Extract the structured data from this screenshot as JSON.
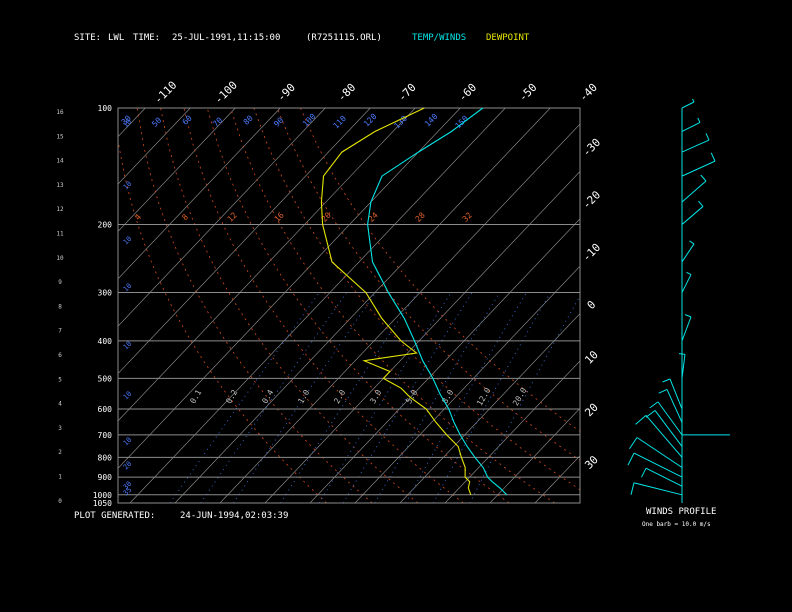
{
  "header": {
    "site_label": "SITE:",
    "site_value": "LWL",
    "time_label": "TIME:",
    "time_value": "25-JUL-1991,11:15:00",
    "file_name": "(R7251115.ORL)",
    "legend_temp": "TEMP/WINDS",
    "legend_dew": "DEWPOINT"
  },
  "footer": {
    "generated_label": "PLOT GENERATED:",
    "generated_value": "24-JUN-1994,02:03:39"
  },
  "wind_panel": {
    "title": "WINDS PROFILE",
    "note": "One barb = 10.0 m/s"
  },
  "colors": {
    "temp": "#00e5e5",
    "dewpoint": "#e5e500",
    "grid": "#8c8c8c",
    "skew": "#9a9a9a",
    "adiabat": "#d24a1e",
    "mixing": "#3a6ad8",
    "labels_blue": "#4a7aff",
    "labels_orange": "#e0602a"
  },
  "chart_data": {
    "type": "line",
    "title": "",
    "pressure_levels": [
      100,
      200,
      300,
      400,
      500,
      600,
      700,
      800,
      900,
      1000,
      1050
    ],
    "height_ticks": [
      "16",
      "15",
      "14",
      "13",
      "12",
      "11",
      "10",
      "9",
      "8",
      "7",
      "6",
      "5",
      "4",
      "3",
      "2",
      "1",
      "0"
    ],
    "top_temp_labels": [
      "-110",
      "-100",
      "-90",
      "-80",
      "-70",
      "-60",
      "-50",
      "-40"
    ],
    "right_temp_labels": [
      "-30",
      "-20",
      "-10",
      "0",
      "10",
      "20",
      "30"
    ],
    "mixing_ratio_labels": [
      "0.1",
      "0.2",
      "0.4",
      "1.0",
      "2.0",
      "3.0",
      "5.0",
      "8.0",
      "12.0",
      "20.0"
    ],
    "adiabat_labels": [
      "4",
      "8",
      "12",
      "16",
      "20",
      "24",
      "28",
      "32"
    ],
    "theta_labels": [
      "30",
      "50",
      "60",
      "70",
      "80",
      "90",
      "100",
      "110",
      "120",
      "130",
      "140",
      "150"
    ],
    "series": [
      {
        "name": "TEMP/WINDS",
        "p": [
          1000,
          960,
          925,
          900,
          850,
          800,
          750,
          700,
          650,
          600,
          550,
          500,
          450,
          400,
          350,
          300,
          250,
          200,
          175,
          150,
          130,
          115,
          100
        ],
        "t": [
          32,
          29,
          26,
          24,
          21,
          17,
          13,
          9,
          5,
          1,
          -4,
          -9,
          -15,
          -21,
          -28,
          -37,
          -47,
          -56,
          -60,
          -63,
          -60,
          -57,
          -55
        ]
      },
      {
        "name": "DEWPOINT",
        "p": [
          1000,
          960,
          925,
          900,
          850,
          800,
          750,
          700,
          650,
          600,
          560,
          530,
          500,
          480,
          450,
          430,
          400,
          350,
          300,
          250,
          200,
          175,
          150,
          130,
          115,
          100
        ],
        "t": [
          24,
          22,
          21,
          19,
          17,
          14,
          11,
          6,
          1,
          -4,
          -10,
          -14,
          -20,
          -20,
          -28,
          -18,
          -24,
          -33,
          -42,
          -56,
          -66,
          -71,
          -76,
          -77,
          -74,
          -68
        ]
      }
    ],
    "winds": [
      {
        "p": 1000,
        "u": -8.0,
        "v": -2.0
      },
      {
        "p": 950,
        "u": -6.0,
        "v": -3.0
      },
      {
        "p": 900,
        "u": -8.0,
        "v": -4.0
      },
      {
        "p": 850,
        "u": -7.5,
        "v": -5.0
      },
      {
        "p": 800,
        "u": -6.0,
        "v": -7.0
      },
      {
        "p": 750,
        "u": -4.5,
        "v": -6.0
      },
      {
        "p": 700,
        "u": -4.0,
        "v": -5.5
      },
      {
        "p": 650,
        "u": -2.5,
        "v": -5.5
      },
      {
        "p": 600,
        "u": -2.0,
        "v": -5.0
      },
      {
        "p": 500,
        "u": 0.5,
        "v": -4.0
      },
      {
        "p": 400,
        "u": 1.5,
        "v": -4.0
      },
      {
        "p": 300,
        "u": 1.5,
        "v": -3.0
      },
      {
        "p": 250,
        "u": 2.0,
        "v": -3.0
      },
      {
        "p": 200,
        "u": 3.5,
        "v": -3.0
      },
      {
        "p": 175,
        "u": 4.0,
        "v": -3.5
      },
      {
        "p": 150,
        "u": 5.5,
        "v": -2.5
      },
      {
        "p": 130,
        "u": 4.5,
        "v": -2.0
      },
      {
        "p": 115,
        "u": 3.0,
        "v": -1.5
      },
      {
        "p": 100,
        "u": 2.0,
        "v": -1.0
      }
    ]
  }
}
